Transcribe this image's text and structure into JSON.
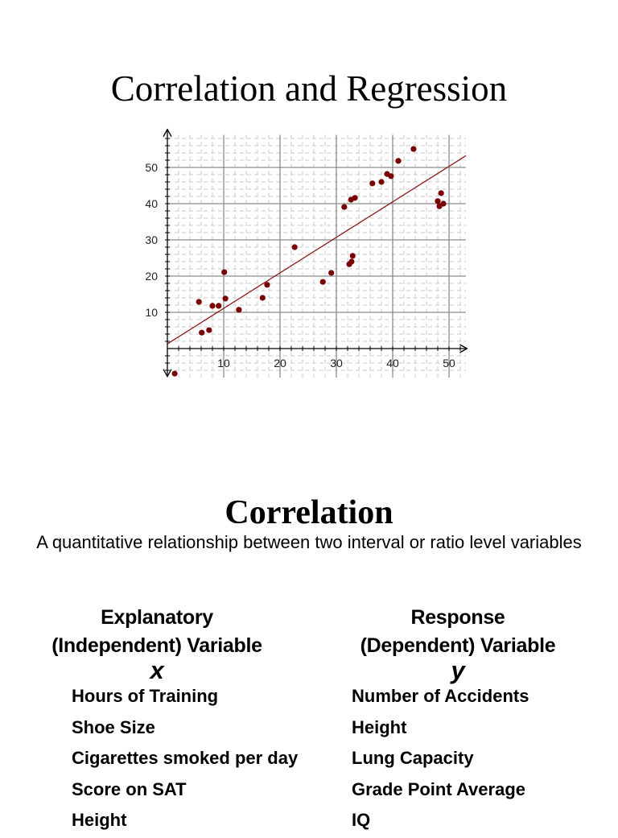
{
  "page": {
    "title": "Correlation and Regression",
    "section_title": "Correlation",
    "definition": "A quantitative relationship between two interval or ratio level variables",
    "columns": {
      "left": {
        "heading_line1": "Explanatory",
        "heading_line2": "(Independent) Variable",
        "symbol": "x"
      },
      "right": {
        "heading_line1": "Response",
        "heading_line2": "(Dependent) Variable",
        "symbol": "y"
      }
    },
    "examples": [
      {
        "x": "Hours of Training",
        "y": "Number of Accidents"
      },
      {
        "x": "Shoe Size",
        "y": "Height"
      },
      {
        "x": "Cigarettes smoked per day",
        "y": "Lung Capacity"
      },
      {
        "x": "Score on SAT",
        "y": "Grade Point Average"
      },
      {
        "x": "Height",
        "y": "IQ"
      }
    ]
  },
  "colors": {
    "point": "#7a0000",
    "regression_line": "#8b1a1a",
    "major_grid": "#8c8c8c",
    "minor_grid": "#c8c8c8",
    "axis": "#000000"
  },
  "chart_data": {
    "type": "scatter",
    "title": "",
    "xlabel": "",
    "ylabel": "",
    "xlim": [
      0,
      53
    ],
    "ylim": [
      -8,
      60
    ],
    "x_ticks": [
      10,
      20,
      30,
      40,
      50
    ],
    "y_ticks": [
      10,
      20,
      30,
      40,
      50
    ],
    "grid": true,
    "legend": null,
    "series": [
      {
        "name": "data",
        "points": [
          [
            1.3,
            -6.9
          ],
          [
            5.6,
            12.9
          ],
          [
            6.1,
            4.4
          ],
          [
            7.4,
            5.1
          ],
          [
            8.0,
            11.8
          ],
          [
            9.1,
            11.8
          ],
          [
            10.1,
            21.1
          ],
          [
            10.3,
            13.8
          ],
          [
            12.7,
            10.7
          ],
          [
            16.9,
            14.0
          ],
          [
            17.7,
            17.6
          ],
          [
            22.6,
            28.0
          ],
          [
            27.6,
            18.4
          ],
          [
            29.1,
            20.9
          ],
          [
            32.3,
            23.3
          ],
          [
            32.7,
            24.0
          ],
          [
            32.9,
            25.6
          ],
          [
            31.4,
            39.1
          ],
          [
            32.6,
            41.1
          ],
          [
            33.3,
            41.6
          ],
          [
            36.4,
            45.6
          ],
          [
            38.0,
            46.0
          ],
          [
            39.0,
            48.2
          ],
          [
            39.7,
            47.6
          ],
          [
            41.0,
            51.8
          ],
          [
            43.7,
            55.1
          ],
          [
            48.6,
            42.9
          ],
          [
            48.0,
            40.7
          ],
          [
            48.3,
            39.3
          ],
          [
            49.0,
            40.0
          ]
        ]
      }
    ],
    "regression_line": {
      "intercept": 1.3,
      "slope": 0.98,
      "x_range": [
        0,
        53
      ]
    }
  }
}
